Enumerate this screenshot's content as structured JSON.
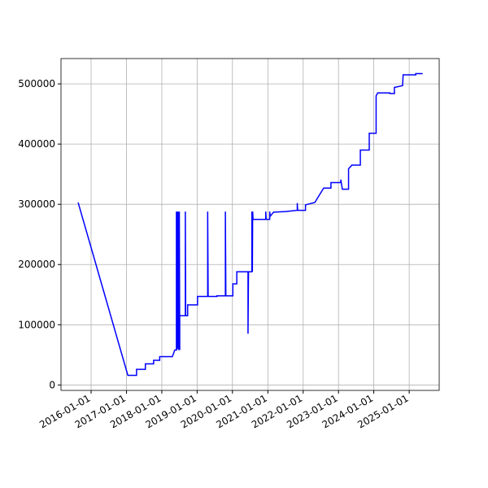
{
  "chart_data": {
    "type": "line",
    "color": "#0000ff",
    "grid": true,
    "x": [
      "2015-08-20",
      "2017-01-15",
      "2017-04-15",
      "2017-04-15",
      "2017-07-15",
      "2017-07-15",
      "2017-10-08",
      "2017-10-08",
      "2017-12-10",
      "2017-12-10",
      "2018-04-20",
      "2018-05-15",
      "2018-06-01",
      "2018-06-01",
      "2018-06-05",
      "2018-06-10",
      "2018-06-15",
      "2018-06-20",
      "2018-06-25",
      "2018-07-01",
      "2018-07-05",
      "2018-07-05",
      "2018-09-01",
      "2018-09-01",
      "2018-09-05",
      "2018-09-25",
      "2018-09-25",
      "2019-01-05",
      "2019-01-05",
      "2019-04-20",
      "2019-04-20",
      "2019-04-25",
      "2019-07-25",
      "2019-07-25",
      "2019-10-20",
      "2019-10-20",
      "2019-10-25",
      "2020-01-05",
      "2020-01-05",
      "2020-02-15",
      "2020-02-15",
      "2020-06-10",
      "2020-06-10",
      "2020-06-15",
      "2020-07-20",
      "2020-07-20",
      "2020-07-25",
      "2020-07-28",
      "2020-08-01",
      "2020-12-10",
      "2020-12-10",
      "2020-12-15",
      "2021-01-20",
      "2021-01-20",
      "2021-01-25",
      "2021-03-01",
      "2021-07-01",
      "2021-11-01",
      "2021-11-01",
      "2021-11-05",
      "2022-01-25",
      "2022-01-25",
      "2022-05-01",
      "2022-08-01",
      "2022-10-15",
      "2022-10-15",
      "2023-01-25",
      "2023-01-25",
      "2023-02-10",
      "2023-04-15",
      "2023-04-15",
      "2023-05-20",
      "2023-08-15",
      "2023-08-15",
      "2023-11-15",
      "2023-11-15",
      "2024-01-25",
      "2024-01-25",
      "2024-02-10",
      "2024-06-15",
      "2024-06-15",
      "2024-08-01",
      "2024-08-01",
      "2024-10-25",
      "2024-10-30",
      "2025-03-10",
      "2025-03-10",
      "2025-05-20"
    ],
    "values": [
      303000,
      16000,
      16000,
      26000,
      26000,
      35000,
      35000,
      41000,
      41000,
      47000,
      47000,
      58000,
      58000,
      288000,
      58000,
      288000,
      60000,
      288000,
      58000,
      288000,
      58000,
      115000,
      115000,
      288000,
      115000,
      115000,
      133000,
      133000,
      147000,
      147000,
      288000,
      147000,
      147000,
      148000,
      148000,
      288000,
      148000,
      148000,
      168000,
      168000,
      188000,
      188000,
      85000,
      188000,
      188000,
      288000,
      188000,
      288000,
      275000,
      275000,
      288000,
      275000,
      275000,
      288000,
      280000,
      287000,
      288000,
      290000,
      302000,
      290000,
      290000,
      299000,
      303000,
      327000,
      327000,
      336000,
      336000,
      341000,
      325000,
      325000,
      359000,
      365000,
      365000,
      390000,
      390000,
      418000,
      418000,
      480000,
      485000,
      485000,
      484000,
      484000,
      494000,
      497000,
      515000,
      515000,
      517000,
      517000
    ],
    "xlim": [
      "2015-02-24",
      "2025-11-07"
    ],
    "xticks": [
      "2016-01-01",
      "2017-01-01",
      "2018-01-01",
      "2019-01-01",
      "2020-01-01",
      "2021-01-01",
      "2022-01-01",
      "2023-01-01",
      "2024-01-01",
      "2025-01-01"
    ],
    "ylim": [
      -9000,
      542000
    ],
    "yticks": [
      0,
      100000,
      200000,
      300000,
      400000,
      500000
    ]
  }
}
